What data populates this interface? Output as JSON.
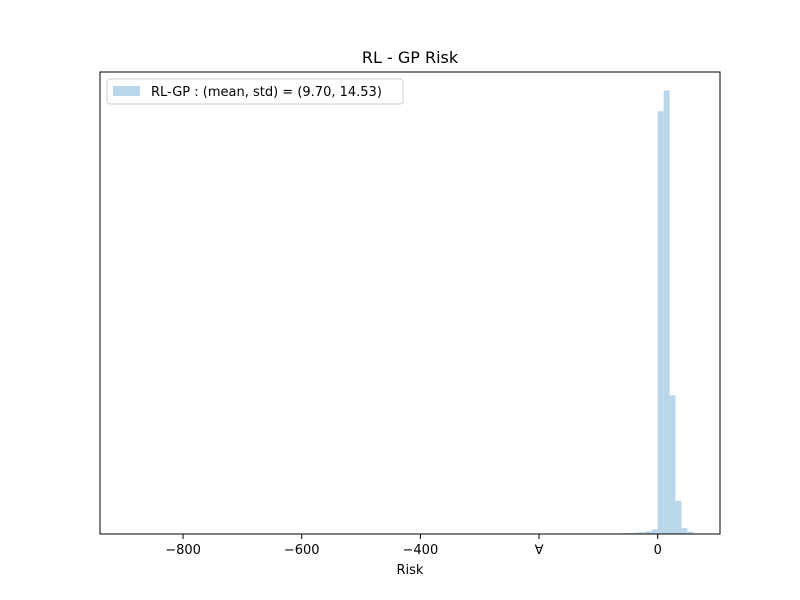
{
  "chart_data": {
    "type": "bar",
    "title": "RL - GP Risk",
    "xlabel": "Risk",
    "ylabel": "",
    "xlim": [
      -940,
      105
    ],
    "ylim": [
      0,
      1
    ],
    "xticks": [
      -800,
      -600,
      -400,
      -200,
      0
    ],
    "xtick_labels": [
      "−800",
      "−600",
      "−400",
      "∀",
      "0"
    ],
    "yticks_visible": false,
    "grid": false,
    "legend_position": "upper-left",
    "bar_color": "#b9d6ea",
    "series": [
      {
        "name": "RL-GP : (mean, std) = (9.70, 14.53)",
        "bin_edges": [
          -70,
          -60,
          -50,
          -40,
          -30,
          -20,
          -10,
          0,
          10,
          20,
          30,
          40,
          50,
          60
        ],
        "counts": [
          0.001,
          0.002,
          0.002,
          0.003,
          0.004,
          0.006,
          0.01,
          0.915,
          0.96,
          0.3,
          0.072,
          0.013,
          0.005
        ]
      }
    ]
  }
}
